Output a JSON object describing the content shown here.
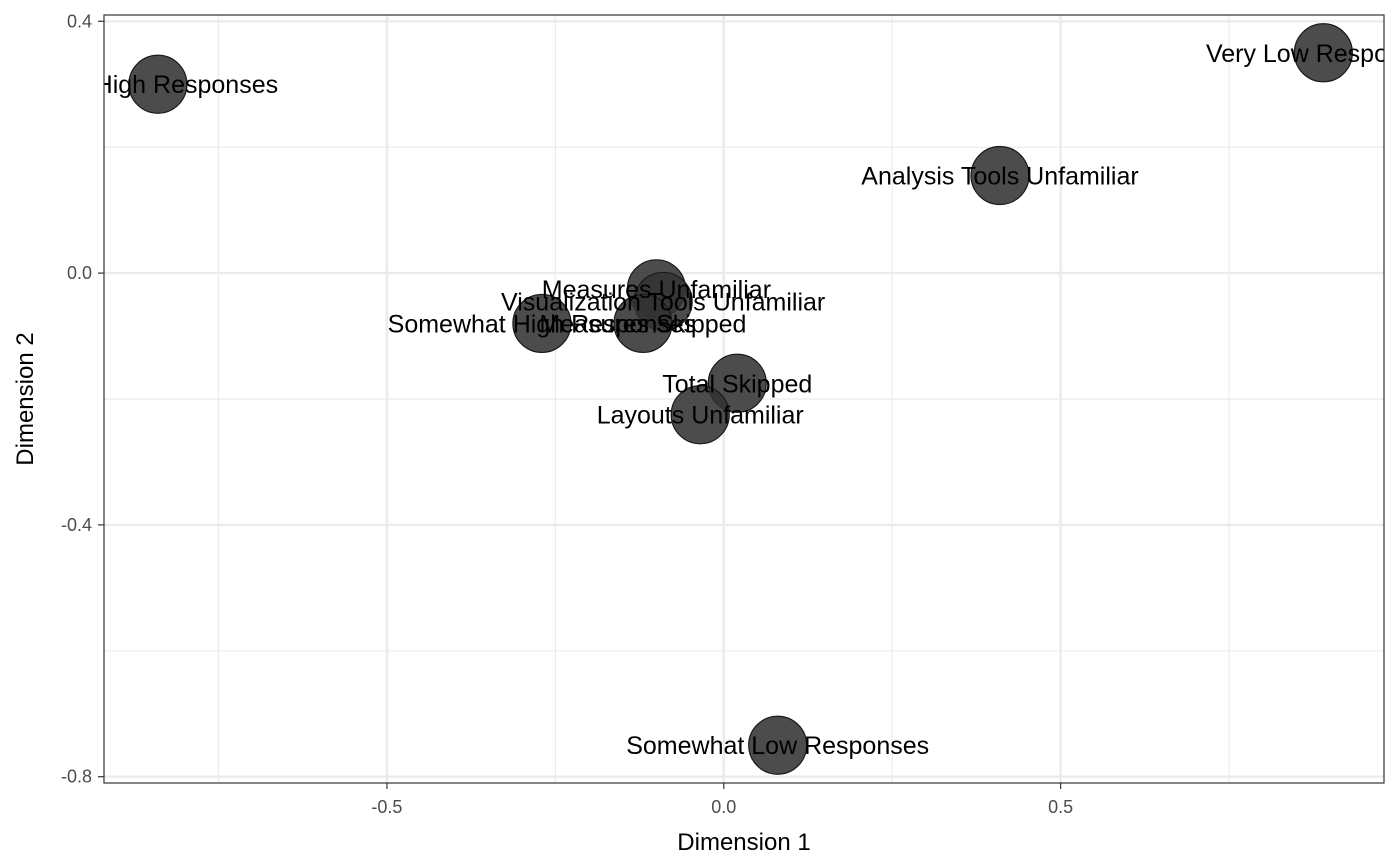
{
  "chart_data": {
    "type": "scatter",
    "title": "",
    "xlabel": "Dimension 1",
    "ylabel": "Dimension 2",
    "xlim": [
      -0.92,
      0.98
    ],
    "ylim": [
      -0.81,
      0.41
    ],
    "x_ticks": [
      -0.5,
      0.0,
      0.5
    ],
    "x_tick_labels": [
      "-0.5",
      "0.0",
      "0.5"
    ],
    "y_ticks": [
      0.4,
      0.0,
      -0.4,
      -0.8
    ],
    "y_tick_labels": [
      "0.4",
      "0.0",
      "-0.4",
      "-0.8"
    ],
    "grid": true,
    "legend": "none",
    "colors": {
      "point": "#333333",
      "grid": "#ebebeb",
      "axis": "#333333"
    },
    "points": [
      {
        "label": "Very High Responses",
        "x": -0.84,
        "y": 0.3
      },
      {
        "label": "Very Low Responses",
        "x": 0.89,
        "y": 0.35
      },
      {
        "label": "Analysis Tools Unfamiliar",
        "x": 0.41,
        "y": 0.155
      },
      {
        "label": "Measures Unfamiliar",
        "x": -0.1,
        "y": -0.025
      },
      {
        "label": "Visualization Tools Unfamiliar",
        "x": -0.09,
        "y": -0.045
      },
      {
        "label": "Somewhat High Responses",
        "x": -0.27,
        "y": -0.08
      },
      {
        "label": "Measures Skipped",
        "x": -0.12,
        "y": -0.08
      },
      {
        "label": "Total Skipped",
        "x": 0.02,
        "y": -0.175
      },
      {
        "label": "Layouts Unfamiliar",
        "x": -0.035,
        "y": -0.225
      },
      {
        "label": "Somewhat Low Responses",
        "x": 0.08,
        "y": -0.75
      }
    ]
  }
}
